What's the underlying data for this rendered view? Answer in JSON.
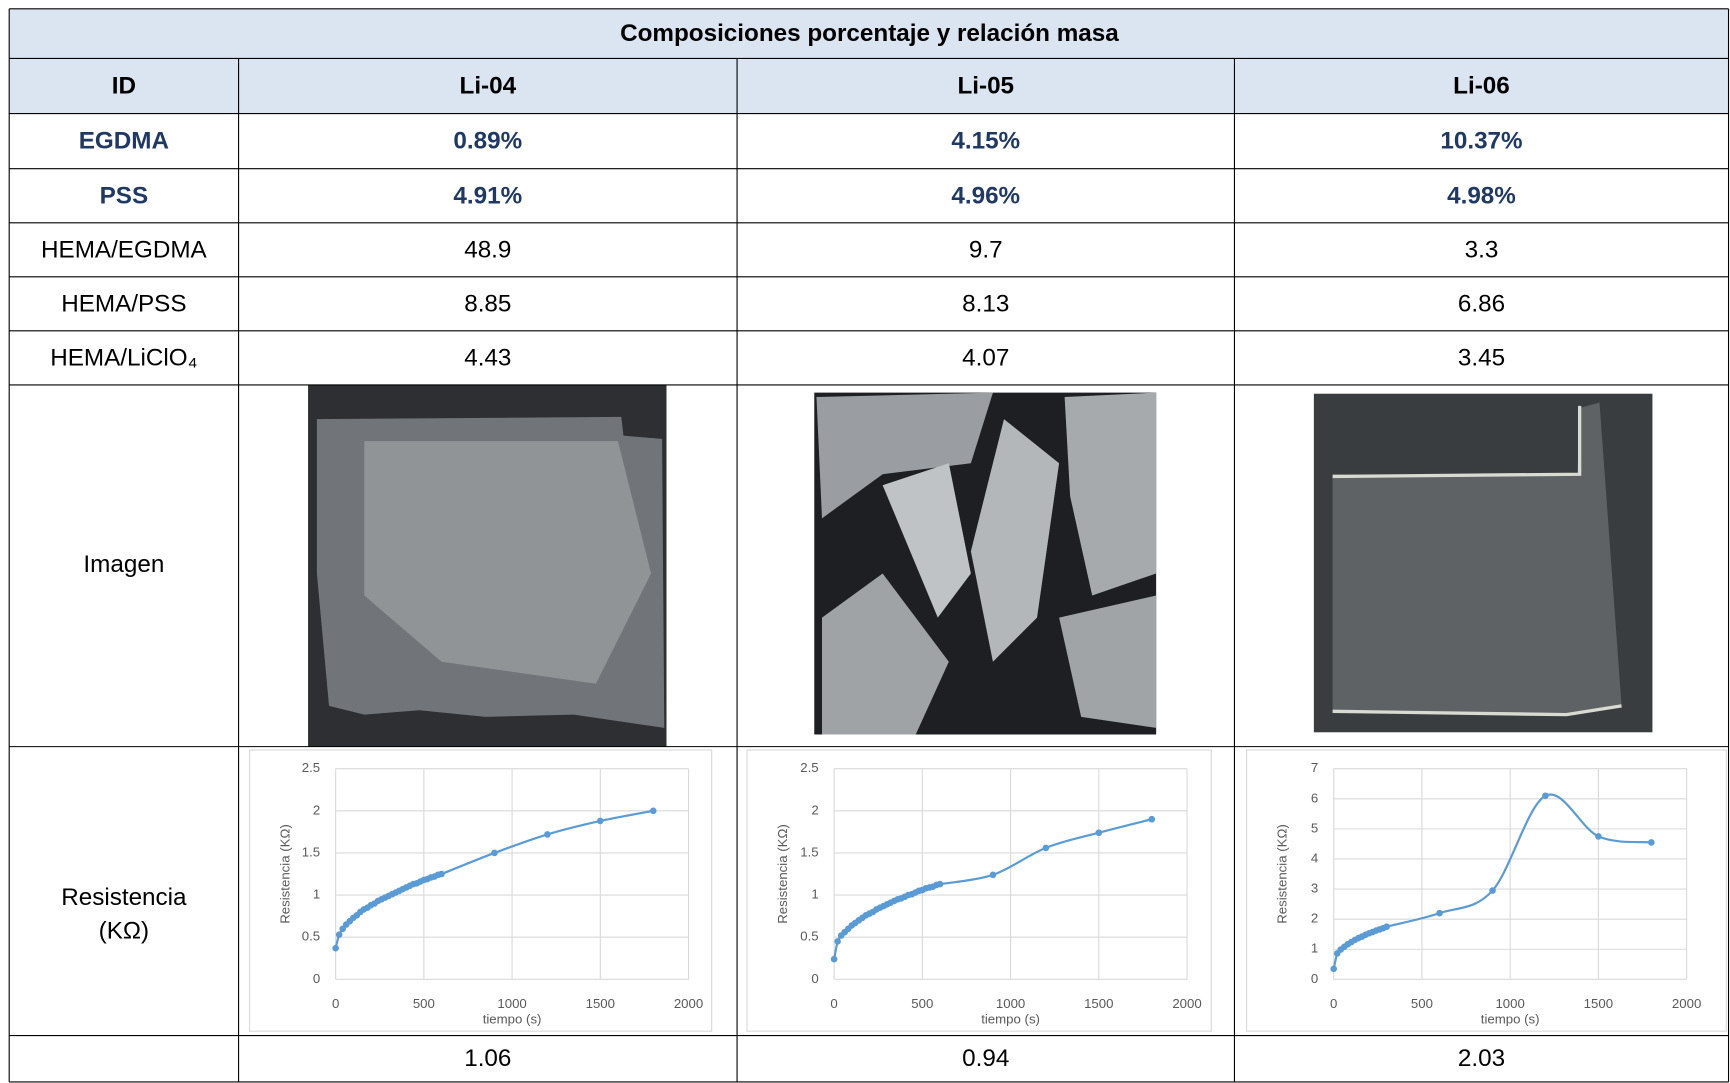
{
  "table": {
    "title": "Composiciones porcentaje y relación masa",
    "header": [
      "ID",
      "Li-04",
      "Li-05",
      "Li-06"
    ],
    "rows": [
      [
        "EGDMA",
        "0.89%",
        "4.15%",
        "10.37%"
      ],
      [
        "PSS",
        "4.91%",
        "4.96%",
        "4.98%"
      ],
      [
        "HEMA/EGDMA",
        "48.9",
        "9.7",
        "3.3"
      ],
      [
        "HEMA/PSS",
        "8.85",
        "8.13",
        "6.86"
      ],
      [
        "HEMA/LiClO₄",
        "4.43",
        "4.07",
        "3.45"
      ]
    ],
    "image_label": "Imagen",
    "chart_label": [
      "Resistencia",
      "(KΩ)"
    ],
    "footer": [
      "1.06",
      "0.94",
      "2.03"
    ]
  },
  "chart_data": [
    {
      "type": "line",
      "x_label": "tiempo (s)",
      "y_label": "Resistencia (KΩ)",
      "smooth": true,
      "grid": true,
      "x": [
        0,
        20,
        40,
        60,
        80,
        100,
        120,
        140,
        160,
        180,
        200,
        220,
        240,
        260,
        280,
        300,
        320,
        340,
        360,
        380,
        400,
        420,
        440,
        460,
        480,
        500,
        520,
        540,
        560,
        580,
        600,
        900,
        1200,
        1500,
        1800
      ],
      "series": [
        {
          "color": "#5b9bd5",
          "values": [
            0.37,
            0.53,
            0.6,
            0.65,
            0.69,
            0.73,
            0.76,
            0.8,
            0.83,
            0.85,
            0.88,
            0.9,
            0.93,
            0.95,
            0.97,
            0.99,
            1.01,
            1.03,
            1.05,
            1.07,
            1.09,
            1.11,
            1.13,
            1.14,
            1.16,
            1.18,
            1.19,
            1.21,
            1.22,
            1.24,
            1.25,
            1.5,
            1.72,
            1.88,
            2.0
          ]
        }
      ],
      "xlim": [
        0,
        2000
      ],
      "ylim": [
        0,
        2.5
      ],
      "xticks": [
        0,
        500,
        1000,
        1500,
        2000
      ],
      "yticks": [
        0,
        0.5,
        1,
        1.5,
        2,
        2.5
      ]
    },
    {
      "type": "line",
      "x_label": "tiempo (s)",
      "y_label": "Resistencia (KΩ)",
      "smooth": true,
      "grid": true,
      "x": [
        0,
        20,
        40,
        60,
        80,
        100,
        120,
        140,
        160,
        180,
        200,
        220,
        240,
        260,
        280,
        300,
        320,
        340,
        360,
        380,
        400,
        420,
        440,
        460,
        480,
        500,
        520,
        540,
        560,
        580,
        600,
        900,
        1200,
        1500,
        1800
      ],
      "series": [
        {
          "color": "#5b9bd5",
          "values": [
            0.24,
            0.45,
            0.52,
            0.56,
            0.6,
            0.64,
            0.67,
            0.7,
            0.73,
            0.76,
            0.78,
            0.8,
            0.83,
            0.85,
            0.87,
            0.89,
            0.91,
            0.93,
            0.95,
            0.96,
            0.98,
            1.0,
            1.01,
            1.03,
            1.05,
            1.06,
            1.08,
            1.09,
            1.1,
            1.12,
            1.13,
            1.24,
            1.56,
            1.74,
            1.9
          ]
        }
      ],
      "xlim": [
        0,
        2000
      ],
      "ylim": [
        0,
        2.5
      ],
      "xticks": [
        0,
        500,
        1000,
        1500,
        2000
      ],
      "yticks": [
        0,
        0.5,
        1,
        1.5,
        2,
        2.5
      ]
    },
    {
      "type": "line",
      "x_label": "tiempo (s)",
      "y_label": "Resistencia (KΩ)",
      "smooth": true,
      "grid": true,
      "x": [
        0,
        20,
        40,
        60,
        80,
        100,
        120,
        140,
        160,
        180,
        200,
        220,
        240,
        260,
        280,
        300,
        600,
        900,
        1200,
        1500,
        1800
      ],
      "series": [
        {
          "color": "#5b9bd5",
          "values": [
            0.35,
            0.86,
            0.99,
            1.08,
            1.17,
            1.24,
            1.31,
            1.37,
            1.42,
            1.48,
            1.53,
            1.57,
            1.62,
            1.66,
            1.7,
            1.75,
            2.2,
            2.95,
            6.1,
            4.75,
            4.55
          ]
        }
      ],
      "xlim": [
        0,
        2000
      ],
      "ylim": [
        0,
        7
      ],
      "xticks": [
        0,
        500,
        1000,
        1500,
        2000
      ],
      "yticks": [
        0,
        1,
        2,
        3,
        4,
        5,
        6,
        7
      ]
    }
  ]
}
